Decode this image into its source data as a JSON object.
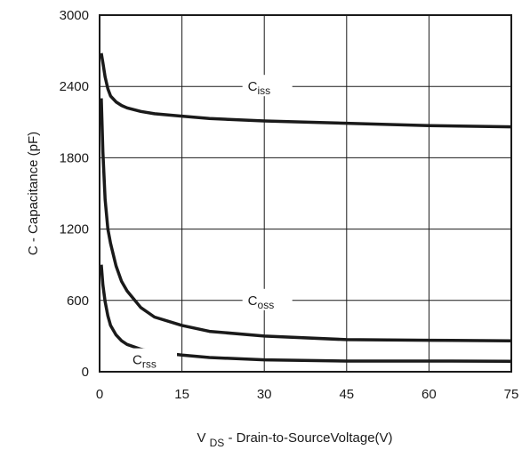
{
  "chart_data": {
    "type": "line",
    "xlabel": {
      "prefix": "V",
      "sub": "DS",
      "rest": " - Drain-to-SourceVoltage(V)"
    },
    "ylabel": "C - Capacitance (pF)",
    "xlim": [
      0,
      75
    ],
    "ylim": [
      0,
      3000
    ],
    "xticks": [
      0,
      15,
      30,
      45,
      60,
      75
    ],
    "yticks": [
      0,
      600,
      1200,
      1800,
      2400,
      3000
    ],
    "xtick_labels": [
      "0",
      "15",
      "30",
      "45",
      "60",
      "75"
    ],
    "ytick_labels": [
      "0",
      "600",
      "1200",
      "1800",
      "2400",
      "3000"
    ],
    "grid": true,
    "series": [
      {
        "name": {
          "main": "C",
          "sub": "iss"
        },
        "x": [
          0.3,
          0.6,
          1,
          1.5,
          2,
          3,
          4,
          5,
          7.5,
          10,
          15,
          20,
          30,
          45,
          60,
          75
        ],
        "y": [
          2680,
          2600,
          2480,
          2380,
          2320,
          2270,
          2240,
          2220,
          2190,
          2170,
          2150,
          2130,
          2110,
          2090,
          2070,
          2060
        ]
      },
      {
        "name": {
          "main": "C",
          "sub": "oss"
        },
        "x": [
          0.3,
          0.6,
          1,
          1.5,
          2,
          3,
          4,
          5,
          7.5,
          10,
          15,
          20,
          30,
          45,
          60,
          75
        ],
        "y": [
          2300,
          1850,
          1450,
          1200,
          1080,
          890,
          760,
          680,
          540,
          460,
          390,
          340,
          300,
          270,
          265,
          260
        ]
      },
      {
        "name": {
          "main": "C",
          "sub": "rss"
        },
        "x": [
          0.3,
          0.6,
          1,
          1.5,
          2,
          3,
          4,
          5,
          7.5,
          10,
          15,
          20,
          30,
          45,
          60,
          75
        ],
        "y": [
          900,
          730,
          590,
          470,
          390,
          310,
          260,
          230,
          190,
          165,
          140,
          120,
          100,
          90,
          90,
          88
        ]
      }
    ],
    "labels_at": [
      {
        "x": 27,
        "y": 2400
      },
      {
        "x": 27,
        "y": 600
      },
      {
        "x": 6,
        "y": 100
      }
    ]
  }
}
